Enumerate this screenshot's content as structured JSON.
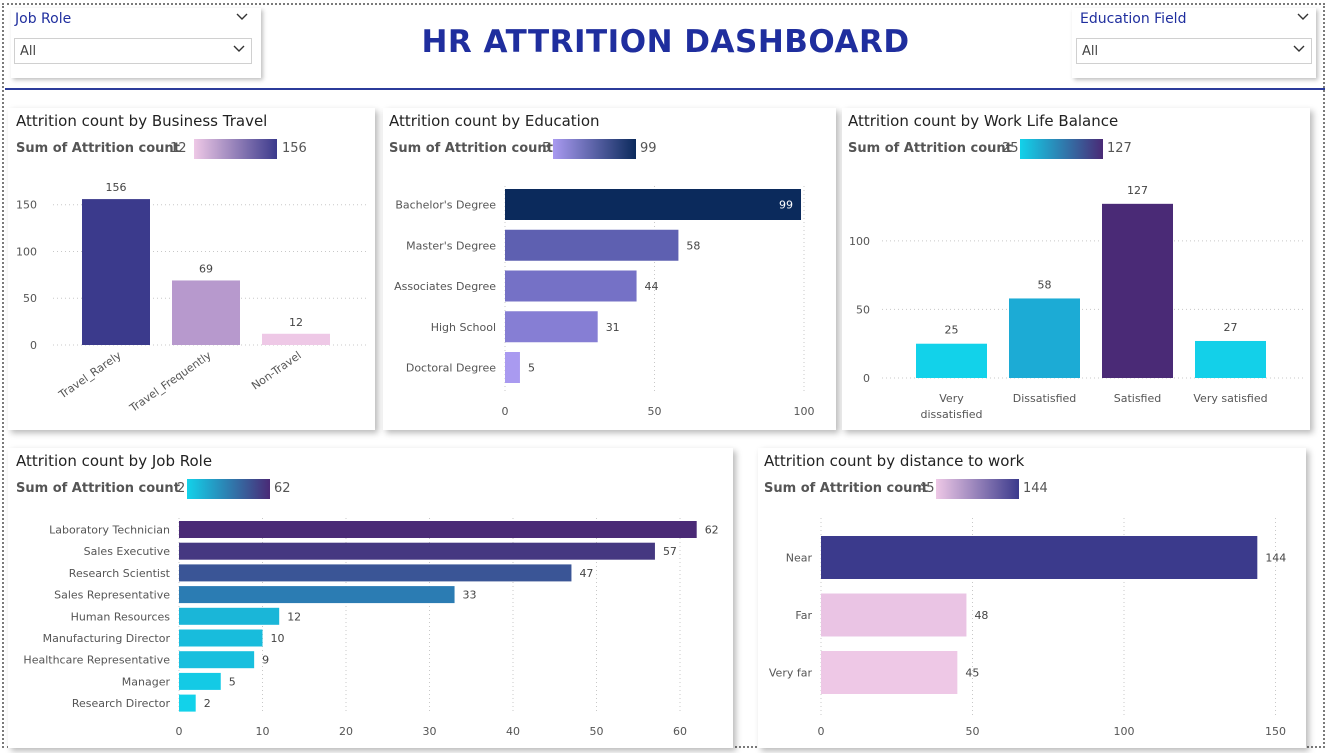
{
  "title": "HR ATTRITION DASHBOARD",
  "slicers": {
    "job_role": {
      "label": "Job Role",
      "value": "All"
    },
    "education_field": {
      "label": "Education Field",
      "value": "All"
    }
  },
  "legend_label": "Sum of Attrition count",
  "colors": {
    "title": "#1f2e9e",
    "purple_dark": "#3b3a8c",
    "purple_mid": "#a98cc6",
    "pink_light": "#eec8e6",
    "navy": "#0b2a5c",
    "cyan": "#12d2ea"
  },
  "chart_data": [
    {
      "id": "business_travel",
      "type": "bar",
      "title": "Attrition count by Business Travel",
      "categories": [
        "Travel_Rarely",
        "Travel_Frequently",
        "Non-Travel"
      ],
      "values": [
        156,
        69,
        12
      ],
      "ylim": [
        0,
        170
      ],
      "yticks": [
        0,
        50,
        100,
        150
      ],
      "legend": {
        "min": 12,
        "max": 156
      },
      "grid": true
    },
    {
      "id": "education",
      "type": "bar",
      "orientation": "horizontal",
      "title": "Attrition count by Education",
      "categories": [
        "Bachelor's Degree",
        "Master's Degree",
        "Associates Degree",
        "High School",
        "Doctoral Degree"
      ],
      "values": [
        99,
        58,
        44,
        31,
        5
      ],
      "xlim": [
        0,
        100
      ],
      "xticks": [
        0,
        50,
        100
      ],
      "legend": {
        "min": 5,
        "max": 99
      },
      "grid": true
    },
    {
      "id": "work_life_balance",
      "type": "bar",
      "title": "Attrition count by Work Life Balance",
      "categories": [
        "Very dissatisfied",
        "Dissatisfied",
        "Satisfied",
        "Very satisfied"
      ],
      "values": [
        25,
        58,
        127,
        27
      ],
      "ylim": [
        0,
        140
      ],
      "yticks": [
        0,
        50,
        100
      ],
      "legend": {
        "min": 25,
        "max": 127
      },
      "grid": true
    },
    {
      "id": "job_role",
      "type": "bar",
      "orientation": "horizontal",
      "title": "Attrition count by Job Role",
      "categories": [
        "Laboratory Technician",
        "Sales Executive",
        "Research Scientist",
        "Sales Representative",
        "Human Resources",
        "Manufacturing Director",
        "Healthcare Representative",
        "Manager",
        "Research Director"
      ],
      "values": [
        62,
        57,
        47,
        33,
        12,
        10,
        9,
        5,
        2
      ],
      "xlim": [
        0,
        66
      ],
      "xticks": [
        0,
        10,
        20,
        30,
        40,
        50,
        60
      ],
      "legend": {
        "min": 2,
        "max": 62
      },
      "grid": true
    },
    {
      "id": "distance",
      "type": "bar",
      "orientation": "horizontal",
      "title": "Attrition count by distance to work",
      "categories": [
        "Near",
        "Far",
        "Very far"
      ],
      "values": [
        144,
        48,
        45
      ],
      "xlim": [
        0,
        150
      ],
      "xticks": [
        0,
        50,
        100,
        150
      ],
      "legend": {
        "min": 45,
        "max": 144
      },
      "grid": true
    }
  ]
}
